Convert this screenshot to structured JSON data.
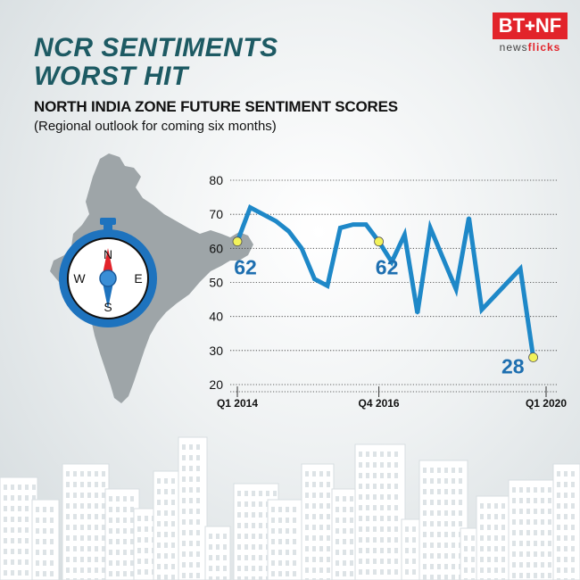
{
  "header": {
    "headline_line1": "NCR SENTIMENTS",
    "headline_line2": "WORST HIT",
    "subtitle": "NORTH INDIA ZONE FUTURE SENTIMENT SCORES",
    "subtitle2": "(Regional outlook for coming six months)"
  },
  "logo": {
    "brand": "BT",
    "brand_sep": "NF",
    "sub_pre": "news",
    "sub_post": "flicks",
    "color": "#e2232a"
  },
  "compass": {
    "n": "N",
    "s": "S",
    "e": "E",
    "w": "W",
    "ring_color": "#1e73be",
    "needle_color": "#e2232a"
  },
  "colors": {
    "line": "#1e88c8",
    "callout": "#1e6fb0",
    "marker": "#f2f25a",
    "map": "#9ea5a8"
  },
  "chart_data": {
    "type": "line",
    "title": "NORTH INDIA ZONE FUTURE SENTIMENT SCORES",
    "ylim": [
      20,
      80
    ],
    "yticks": [
      20,
      30,
      40,
      50,
      60,
      70,
      80
    ],
    "x_tick_labels": [
      {
        "index": 0,
        "label": "Q1 2014"
      },
      {
        "index": 11,
        "label": "Q4 2016"
      },
      {
        "index": 24,
        "label": "Q1 2020"
      }
    ],
    "series": [
      {
        "values": [
          62,
          72,
          70,
          68,
          65,
          60,
          51,
          49,
          66,
          67,
          67,
          62,
          56,
          64,
          41,
          66,
          57,
          48,
          69,
          42,
          46,
          50,
          54,
          28
        ]
      }
    ],
    "highlight_indices": [
      0,
      11,
      23
    ],
    "callouts": [
      {
        "index": 0,
        "label": "62"
      },
      {
        "index": 11,
        "label": "62"
      },
      {
        "index": 23,
        "label": "28"
      }
    ]
  }
}
